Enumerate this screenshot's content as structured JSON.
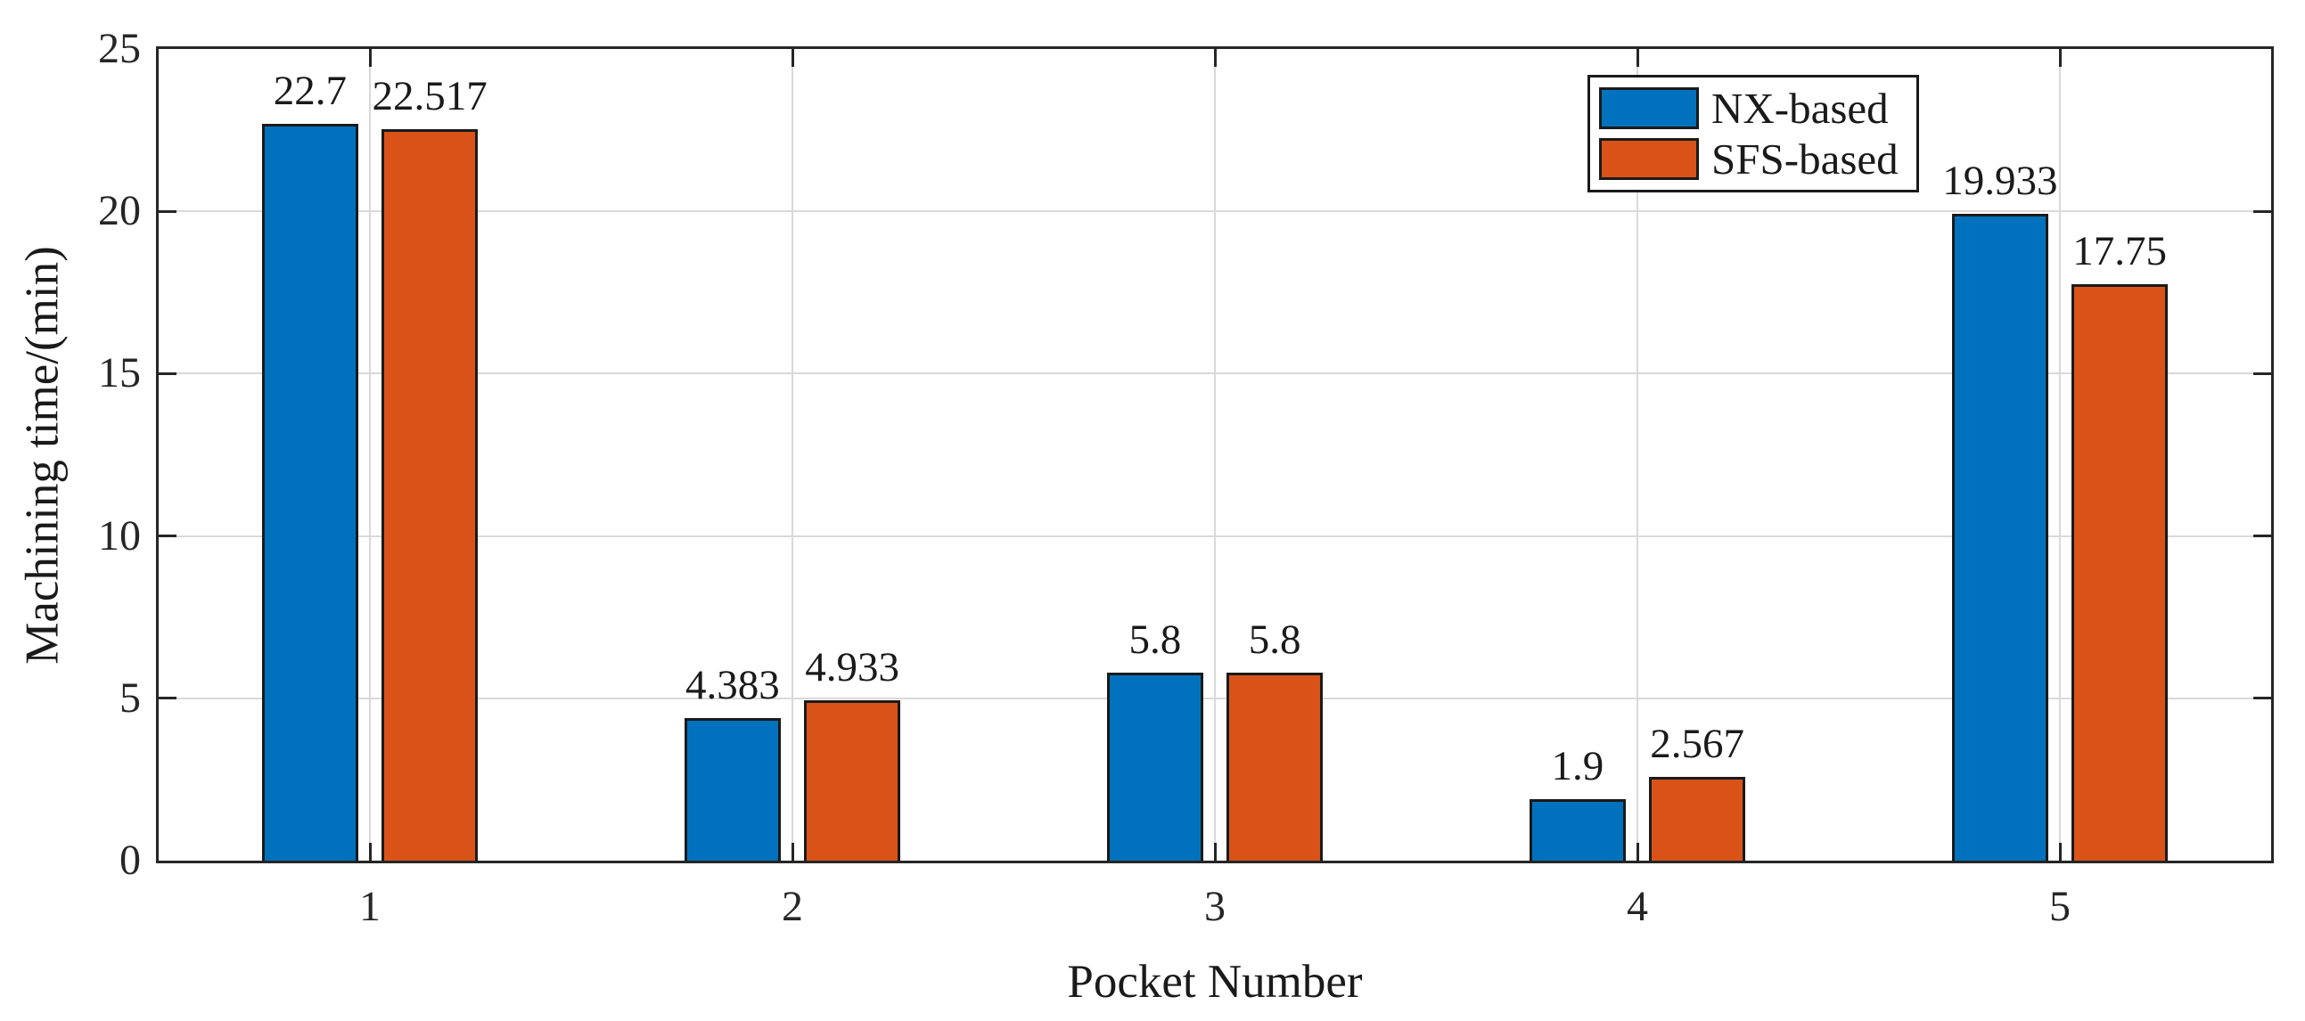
{
  "chart_data": {
    "type": "bar",
    "title": "",
    "xlabel": "Pocket Number",
    "ylabel": "Machining time/(min)",
    "categories": [
      "1",
      "2",
      "3",
      "4",
      "5"
    ],
    "series": [
      {
        "name": "NX-based",
        "color": "#0072BD",
        "values": [
          22.7,
          4.383,
          5.8,
          1.9,
          19.933
        ],
        "labels": [
          "22.7",
          "4.383",
          "5.8",
          "1.9",
          "19.933"
        ]
      },
      {
        "name": "SFS-based",
        "color": "#D95319",
        "values": [
          22.517,
          4.933,
          5.8,
          2.567,
          17.75
        ],
        "labels": [
          "22.517",
          "4.933",
          "5.8",
          "2.567",
          "17.75"
        ]
      }
    ],
    "ylim": [
      0,
      25
    ],
    "yticks": [
      0,
      5,
      10,
      15,
      20,
      25
    ],
    "ytick_labels": [
      "0",
      "5",
      "10",
      "15",
      "20",
      "25"
    ],
    "xlim": [
      0.5,
      5.5
    ],
    "grid": true,
    "legend_position": "top-right",
    "legend_entries": [
      "NX-based",
      "SFS-based"
    ],
    "bar_edge_color": "#1a1a1a",
    "axis_color": "#262626",
    "grid_color": "#d9d9d9",
    "background_color": "#ffffff"
  }
}
